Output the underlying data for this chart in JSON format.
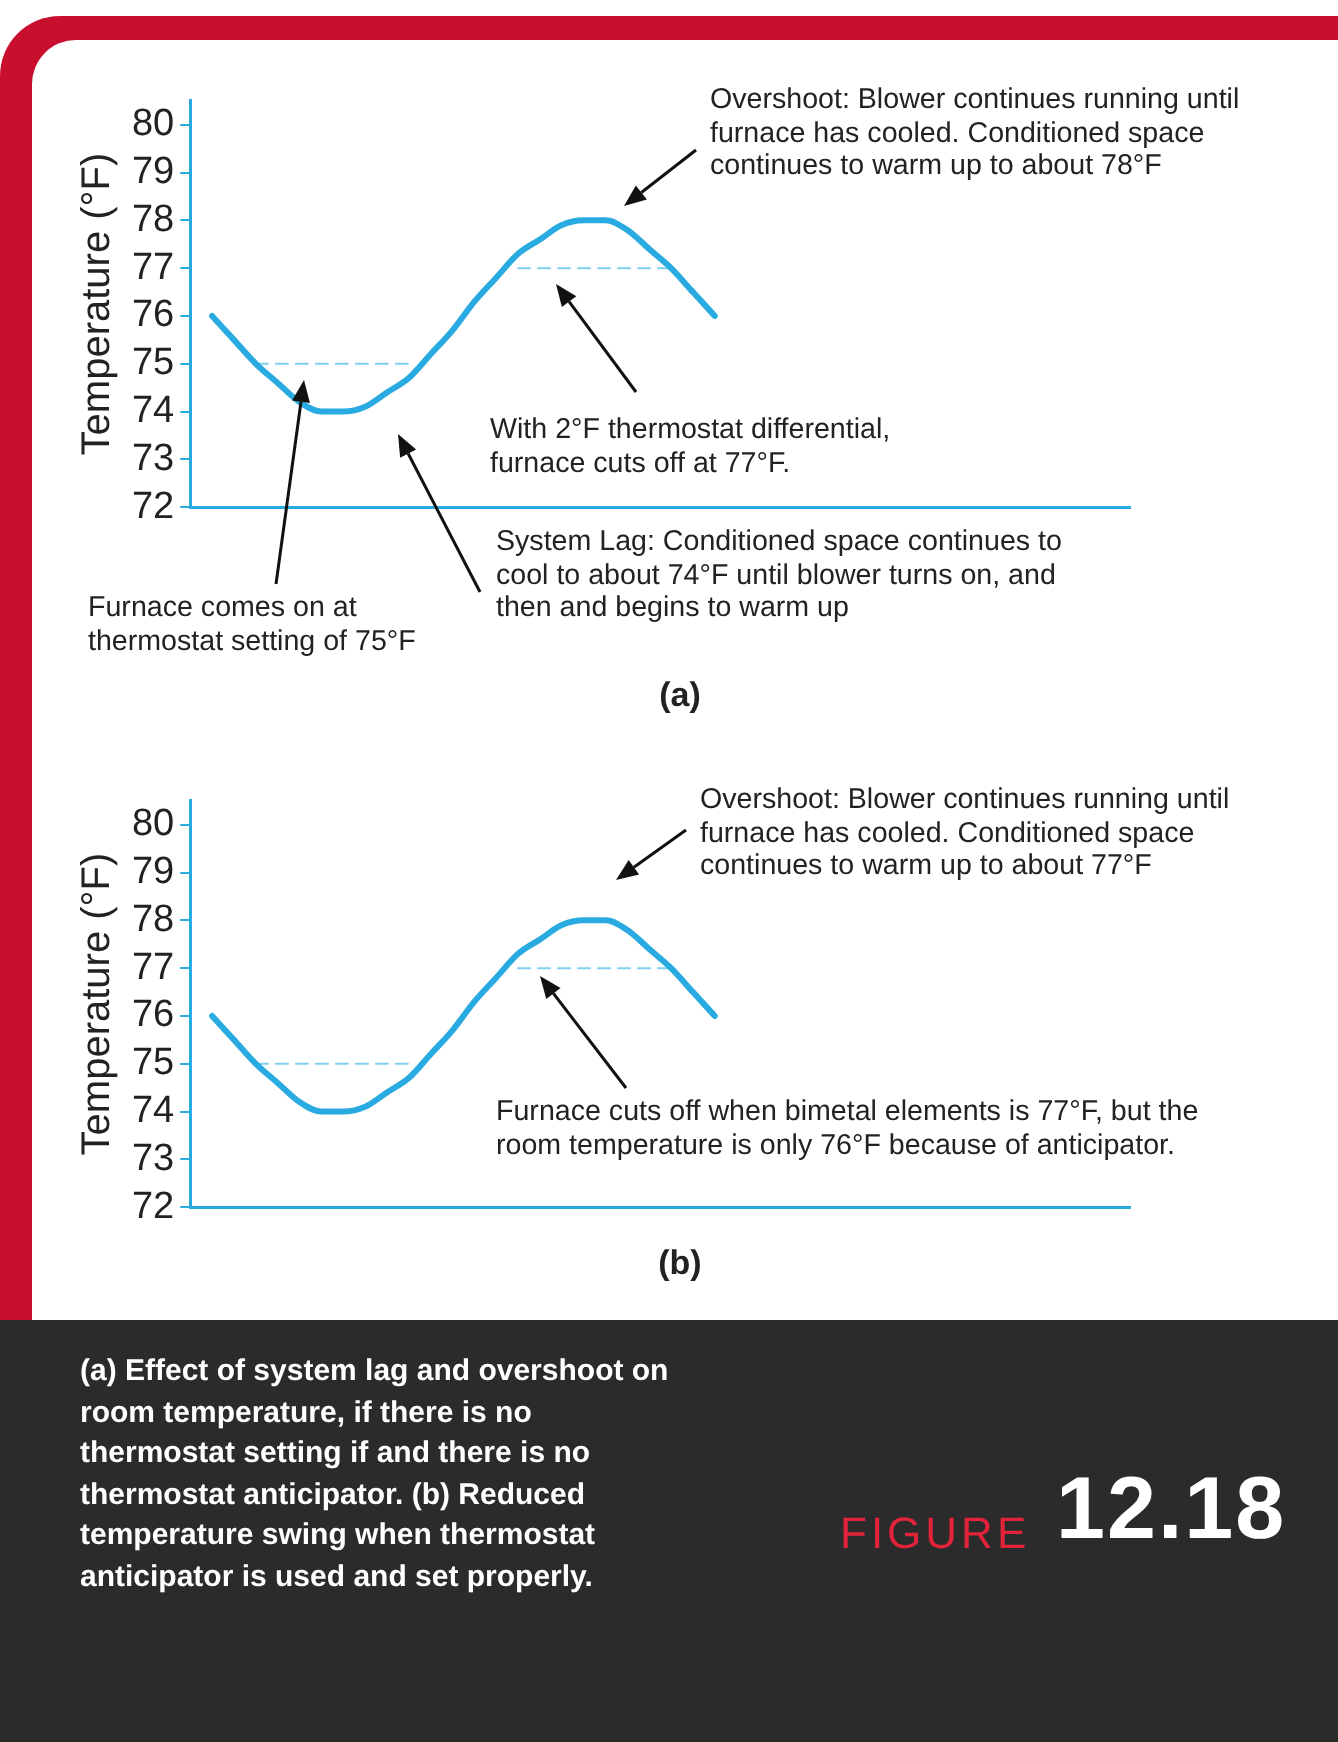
{
  "chart_data": [
    {
      "type": "line",
      "categories": [
        null,
        null,
        null,
        null,
        null,
        null,
        null,
        null,
        null,
        null,
        null,
        null,
        null,
        null,
        null,
        null,
        null,
        null,
        null,
        null,
        null,
        null,
        null,
        null,
        null,
        null,
        null,
        null,
        null,
        null,
        null,
        null,
        null,
        null,
        null,
        null,
        null,
        null,
        null,
        null,
        null,
        null,
        null,
        null
      ],
      "xlabel": "(a)",
      "ylabel": "Temperature (°F)",
      "ylim": [
        72,
        80.5
      ],
      "yticks": [
        72,
        73,
        74,
        75,
        76,
        77,
        78,
        79,
        80
      ],
      "tick_labels": "y",
      "grid": false,
      "marker": "none",
      "series": [
        {
          "color": "#29abe2",
          "line_style": "solid",
          "values": [
            null,
            76.0,
            75.5,
            75.0,
            74.6,
            74.2,
            74.0,
            74.0,
            74.1,
            74.4,
            74.7,
            75.2,
            75.7,
            76.3,
            76.8,
            77.3,
            77.6,
            77.9,
            78.0,
            78.0,
            77.8,
            77.4,
            77.0,
            76.5,
            76.0,
            null,
            null,
            null,
            null,
            null,
            null,
            null,
            null,
            null,
            null,
            null,
            null,
            null,
            null,
            null,
            null,
            null,
            null,
            null
          ]
        },
        {
          "color": "#7fd0f0",
          "line_style": "dashed",
          "values": [
            null,
            null,
            null,
            75,
            75,
            75,
            75,
            75,
            75,
            75,
            75,
            null,
            null,
            null,
            null,
            null,
            null,
            null,
            null,
            null,
            null,
            null,
            null,
            null,
            null,
            null,
            null,
            null,
            null,
            null,
            null,
            null,
            null,
            null,
            null,
            null,
            null,
            null,
            null,
            null,
            null,
            null,
            null,
            null
          ]
        },
        {
          "color": "#7fd0f0",
          "line_style": "dashed",
          "values": [
            null,
            null,
            null,
            null,
            null,
            null,
            null,
            null,
            null,
            null,
            null,
            null,
            null,
            null,
            null,
            77,
            77,
            77,
            77,
            77,
            77,
            77,
            77,
            null,
            null,
            null,
            null,
            null,
            null,
            null,
            null,
            null,
            null,
            null,
            null,
            null,
            null,
            null,
            null,
            null,
            null,
            null,
            null,
            null
          ]
        }
      ],
      "annotations": [
        "Overshoot: Blower continues running until furnace has cooled. Conditioned space continues to warm up to about 78°F",
        "With 2°F thermostat differential, furnace cuts off at 77°F.",
        "System Lag: Conditioned space continues to cool to about 74°F until blower turns on, and then and begins to warm up",
        "Furnace comes on at thermostat setting of 75°F"
      ]
    },
    {
      "type": "line",
      "categories": [
        null,
        null,
        null,
        null,
        null,
        null,
        null,
        null,
        null,
        null,
        null,
        null,
        null,
        null,
        null,
        null,
        null,
        null,
        null,
        null,
        null,
        null,
        null,
        null,
        null,
        null,
        null,
        null,
        null,
        null,
        null,
        null,
        null,
        null,
        null,
        null,
        null,
        null,
        null,
        null,
        null,
        null,
        null,
        null
      ],
      "xlabel": "(b)",
      "ylabel": "Temperature (°F)",
      "ylim": [
        72,
        80.5
      ],
      "yticks": [
        72,
        73,
        74,
        75,
        76,
        77,
        78,
        79,
        80
      ],
      "tick_labels": "y",
      "grid": false,
      "marker": "none",
      "series": [
        {
          "color": "#29abe2",
          "line_style": "solid",
          "values": [
            null,
            76.0,
            75.5,
            75.0,
            74.6,
            74.2,
            74.0,
            74.0,
            74.1,
            74.4,
            74.7,
            75.2,
            75.7,
            76.3,
            76.8,
            77.3,
            77.6,
            77.9,
            78.0,
            78.0,
            77.8,
            77.4,
            77.0,
            76.5,
            76.0,
            null,
            null,
            null,
            null,
            null,
            null,
            null,
            null,
            null,
            null,
            null,
            null,
            null,
            null,
            null,
            null,
            null,
            null,
            null
          ]
        },
        {
          "color": "#7fd0f0",
          "line_style": "dashed",
          "values": [
            null,
            null,
            null,
            75,
            75,
            75,
            75,
            75,
            75,
            75,
            75,
            null,
            null,
            null,
            null,
            null,
            null,
            null,
            null,
            null,
            null,
            null,
            null,
            null,
            null,
            null,
            null,
            null,
            null,
            null,
            null,
            null,
            null,
            null,
            null,
            null,
            null,
            null,
            null,
            null,
            null,
            null,
            null,
            null
          ]
        },
        {
          "color": "#7fd0f0",
          "line_style": "dashed",
          "values": [
            null,
            null,
            null,
            null,
            null,
            null,
            null,
            null,
            null,
            null,
            null,
            null,
            null,
            null,
            null,
            77,
            77,
            77,
            77,
            77,
            77,
            77,
            77,
            null,
            null,
            null,
            null,
            null,
            null,
            null,
            null,
            null,
            null,
            null,
            null,
            null,
            null,
            null,
            null,
            null,
            null,
            null,
            null,
            null
          ]
        }
      ],
      "annotations": [
        "Overshoot: Blower continues running until furnace has cooled. Conditioned space continues to warm up to about 77°F",
        "Furnace cuts off when bimetal elements is 77°F, but the room temperature is only 76°F because of anticipator.",
        "(a) Effect of system lag and overshoot on room temperature, if there is no thermostat setting if and there is no thermostat anticipator. (b) Reduced temperature swing when thermostat anticipator is used and set properly.",
        "FIGURE",
        "12.18"
      ]
    }
  ]
}
